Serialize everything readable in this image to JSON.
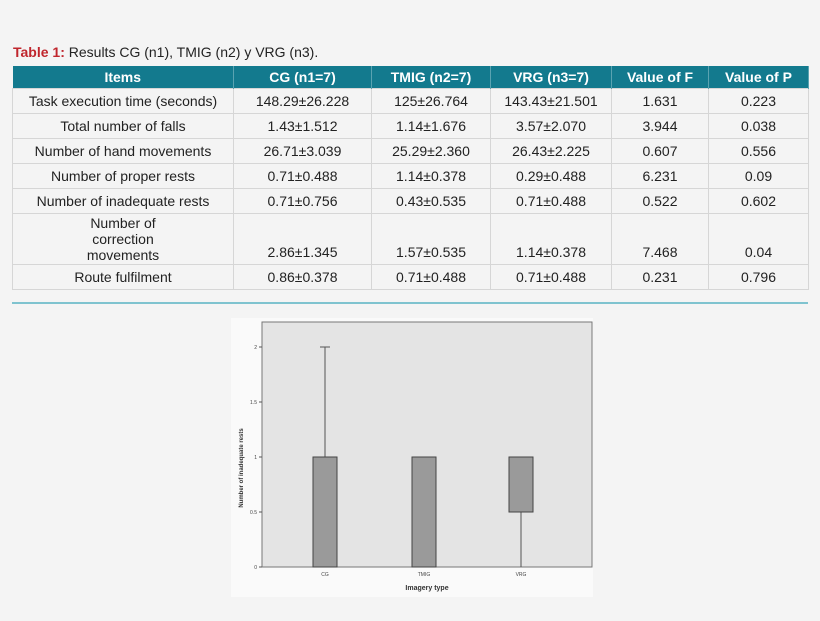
{
  "table": {
    "caption_label": "Table 1:",
    "caption_text": " Results CG (n1), TMIG (n2) y VRG (n3).",
    "headers": [
      "Items",
      "CG (n1=7)",
      "TMIG (n2=7)",
      "VRG (n3=7)",
      "Value of F",
      "Value of P"
    ],
    "rows": [
      [
        "Task execution time (seconds)",
        "148.29±26.228",
        "125±26.764",
        "143.43±21.501",
        "1.631",
        "0.223"
      ],
      [
        "Total number of falls",
        "1.43±1.512",
        "1.14±1.676",
        "3.57±2.070",
        "3.944",
        "0.038"
      ],
      [
        "Number of hand movements",
        "26.71±3.039",
        "25.29±2.360",
        "26.43±2.225",
        "0.607",
        "0.556"
      ],
      [
        "Number of proper rests",
        "0.71±0.488",
        "1.14±0.378",
        "0.29±0.488",
        "6.231",
        "0.09"
      ],
      [
        "Number of inadequate rests",
        "0.71±0.756",
        "0.43±0.535",
        "0.71±0.488",
        "0.522",
        "0.602"
      ],
      [
        "Number of correction movements",
        "2.86±1.345",
        "1.57±0.535",
        "1.14±0.378",
        "7.468",
        "0.04"
      ],
      [
        "Route fulfilment",
        "0.86±0.378",
        "0.71±0.488",
        "0.71±0.488",
        "0.231",
        "0.796"
      ]
    ],
    "header_color": "#137a8e",
    "caption_color": "#c0262d"
  },
  "chart_data": {
    "type": "boxplot",
    "xlabel": "Imagery type",
    "ylabel": "Number of inadequate rests",
    "categories": [
      "CG",
      "TMIG",
      "VRG"
    ],
    "boxes": [
      {
        "min": 0,
        "q1": 0,
        "median": 1,
        "q3": 1,
        "max": 2
      },
      {
        "min": 0,
        "q1": 0,
        "median": 1,
        "q3": 1,
        "max": 1
      },
      {
        "min": 0,
        "q1": 0.5,
        "median": 1,
        "q3": 1,
        "max": 1
      }
    ],
    "yticks": [
      "0",
      "0.5",
      "1",
      "1.5",
      "2"
    ],
    "ylim": [
      0,
      2.2
    ],
    "box_color": "#9a9a9a",
    "plot_bg": "#e4e4e4"
  }
}
